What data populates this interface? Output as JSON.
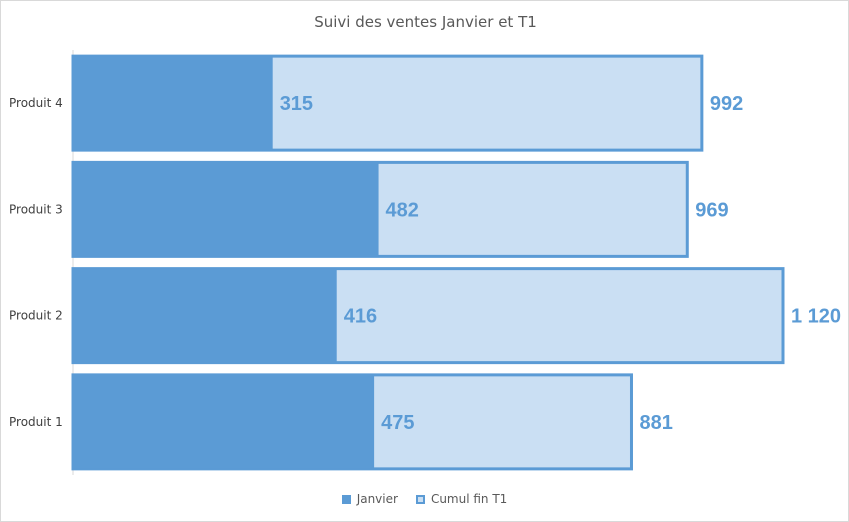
{
  "chart_data": {
    "type": "bar",
    "orientation": "horizontal",
    "title": "Suivi des ventes Janvier et T1",
    "categories": [
      "Produit 1",
      "Produit 2",
      "Produit 3",
      "Produit 4"
    ],
    "series": [
      {
        "name": "Janvier",
        "values": [
          475,
          416,
          482,
          315
        ],
        "labels": [
          "475",
          "416",
          "482",
          "315"
        ],
        "color": "#5b9bd5"
      },
      {
        "name": "Cumul fin T1",
        "values": [
          881,
          1120,
          969,
          992
        ],
        "labels": [
          "881",
          "1 120",
          "969",
          "992"
        ],
        "color": "#cadff3",
        "border": "#5b9bd5"
      }
    ],
    "overlap": true,
    "xlim": [
      0,
      1120
    ],
    "grid": false,
    "legend": "bottom"
  }
}
